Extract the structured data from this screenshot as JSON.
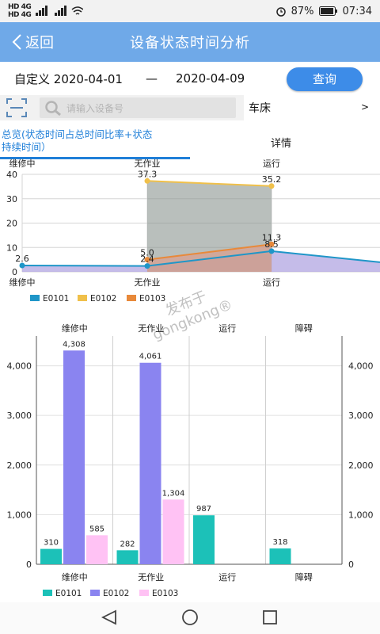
{
  "status_bar": {
    "signal_left": "HD 4G",
    "signal_left2": "HD 4G",
    "battery": "87%",
    "time": "07:34"
  },
  "header": {
    "back_label": "返回",
    "title": "设备状态时间分析"
  },
  "date_filter": {
    "label": "自定义",
    "start": "2020-04-01",
    "separator": "—",
    "end": "2020-04-09",
    "query_button": "查询"
  },
  "search": {
    "placeholder": "请输入设备号",
    "type_value": "车床",
    "type_chevron": ">"
  },
  "tabs": {
    "overview_line1": "总览(状态时间占总时间比率+状态",
    "overview_line2": "持续时间）",
    "detail": "详情"
  },
  "watermark": {
    "line1": "发布于",
    "line2": "gongkong®"
  },
  "colors": {
    "accent": "#6fa9e8",
    "button": "#3d8ce8",
    "E0101": "#1f96c8",
    "E0102": "#f0c04a",
    "E0103": "#e8893a",
    "bar_E0101": "#1cc1b8",
    "bar_E0102": "#8a84f0",
    "bar_E0103": "#ffc2f4"
  },
  "chart_data": [
    {
      "type": "area",
      "categories": [
        "维修中",
        "无作业",
        "运行"
      ],
      "ylim": [
        0,
        40
      ],
      "yticks": [
        0,
        10,
        20,
        30,
        40
      ],
      "grid": true,
      "legend_position": "bottom-left",
      "series": [
        {
          "name": "E0101",
          "values": [
            2.6,
            2.4,
            8.5
          ],
          "labels": [
            "2.6",
            "2.4",
            "8.5"
          ]
        },
        {
          "name": "E0102",
          "values": [
            null,
            37.3,
            35.2
          ],
          "labels": [
            "",
            "37.3",
            "35.2"
          ]
        },
        {
          "name": "E0103",
          "values": [
            null,
            5.0,
            11.3
          ],
          "labels": [
            "",
            "5.0",
            "11.3"
          ]
        }
      ]
    },
    {
      "type": "bar",
      "categories": [
        "维修中",
        "无作业",
        "运行",
        "障碍"
      ],
      "ylim": [
        0,
        4600
      ],
      "yticks": [
        0,
        1000,
        2000,
        3000,
        4000
      ],
      "ytick_labels": [
        "0",
        "1,000",
        "2,000",
        "3,000",
        "4,000"
      ],
      "grid": true,
      "legend_position": "bottom-left",
      "series": [
        {
          "name": "E0101",
          "values": [
            310,
            282,
            987,
            318
          ],
          "labels": [
            "310",
            "282",
            "987",
            "318"
          ]
        },
        {
          "name": "E0102",
          "values": [
            4308,
            4061,
            null,
            null
          ],
          "labels": [
            "4,308",
            "4,061",
            "",
            ""
          ]
        },
        {
          "name": "E0103",
          "values": [
            585,
            1304,
            null,
            null
          ],
          "labels": [
            "585",
            "1,304",
            "",
            ""
          ]
        }
      ]
    }
  ]
}
